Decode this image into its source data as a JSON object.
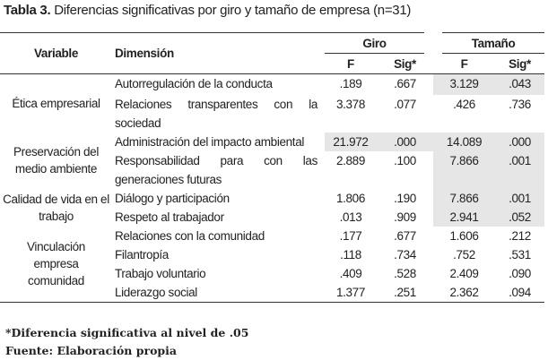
{
  "title": {
    "label": "Tabla 3.",
    "text": "Diferencias significativas por giro y tamaño de empresa (n=31)"
  },
  "headers": {
    "variable": "Variable",
    "dimension": "Dimensión",
    "giro": "Giro",
    "tamano": "Tamaño",
    "f": "F",
    "sig": "Sig*"
  },
  "groups": [
    {
      "variable": "Ética empresarial"
    },
    {
      "variable": "Preservación del medio ambiente"
    },
    {
      "variable": "Calidad de vida en el trabajo"
    },
    {
      "variable": "Vinculación empresa comunidad"
    }
  ],
  "rows": [
    {
      "dimension": "Autorregulación de la conducta",
      "giro_f": ".189",
      "giro_sig": ".667",
      "tam_f": "3.129",
      "tam_sig": ".043"
    },
    {
      "dimension": "Relaciones transparentes con la sociedad",
      "giro_f": "3.378",
      "giro_sig": ".077",
      "tam_f": ".426",
      "tam_sig": ".736"
    },
    {
      "dimension": "Administración del impacto ambiental",
      "giro_f": "21.972",
      "giro_sig": ".000",
      "tam_f": "14.089",
      "tam_sig": ".000"
    },
    {
      "dimension": "Responsabilidad para con las generaciones futuras",
      "giro_f": "2.889",
      "giro_sig": ".100",
      "tam_f": "7.866",
      "tam_sig": ".001"
    },
    {
      "dimension": "Diálogo y participación",
      "giro_f": "1.806",
      "giro_sig": ".190",
      "tam_f": "7.866",
      "tam_sig": ".001"
    },
    {
      "dimension": "Respeto al trabajador",
      "giro_f": ".013",
      "giro_sig": ".909",
      "tam_f": "2.941",
      "tam_sig": ".052"
    },
    {
      "dimension": "Relaciones con la comunidad",
      "giro_f": ".177",
      "giro_sig": ".677",
      "tam_f": "1.606",
      "tam_sig": ".212"
    },
    {
      "dimension": "Filantropía",
      "giro_f": ".118",
      "giro_sig": ".734",
      "tam_f": ".752",
      "tam_sig": ".531"
    },
    {
      "dimension": "Trabajo voluntario",
      "giro_f": ".409",
      "giro_sig": ".528",
      "tam_f": "2.409",
      "tam_sig": ".090"
    },
    {
      "dimension": "Liderazgo social",
      "giro_f": "1.377",
      "giro_sig": ".251",
      "tam_f": "2.362",
      "tam_sig": ".094"
    }
  ],
  "footnotes": {
    "note": "*Diferencia significativa al nivel de .05",
    "source": "Fuente: Elaboración propia"
  },
  "colors": {
    "highlight": "#e6e6e6"
  }
}
